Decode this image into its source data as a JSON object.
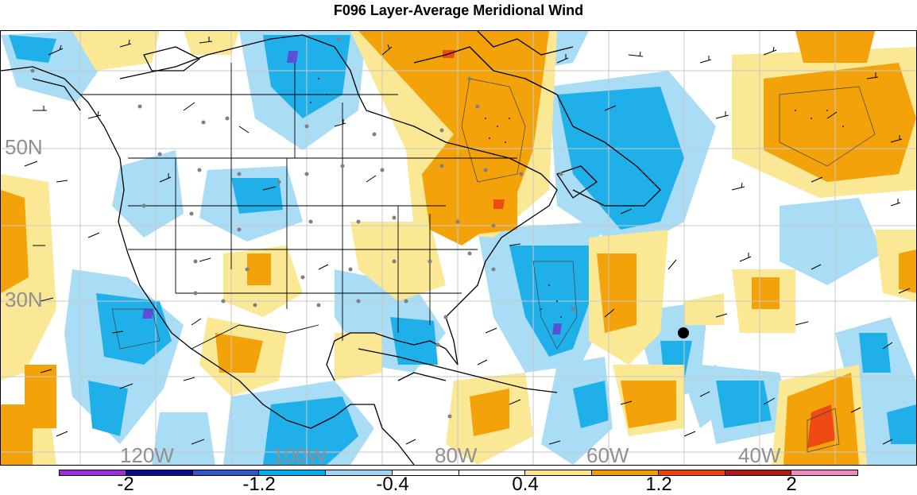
{
  "title": "F096 Layer-Average Meridional Wind",
  "lat_labels": [
    "50N",
    "30N"
  ],
  "lon_labels": [
    "120W",
    "100W",
    "80W",
    "60W",
    "40W"
  ],
  "colorbar": {
    "labels": [
      "-2",
      "-1.2",
      "-0.4",
      "0.4",
      "1.2",
      "2"
    ],
    "colors": [
      "#9b30d8",
      "#0a0a8c",
      "#3355cc",
      "#00b0ee",
      "#9fd6f5",
      "#ffffff",
      "#ffffff",
      "#fbe58e",
      "#f0a000",
      "#ee4010",
      "#b01818",
      "#f088c0"
    ]
  },
  "colors": {
    "light_blue": "#a9dcf5",
    "blue": "#1fb0ea",
    "purple_blue": "#5a50d8",
    "light_yellow": "#fbe895",
    "orange": "#f3a20a",
    "red_orange": "#ee4a14",
    "coast": "#000000",
    "grid": "#c8c8c8",
    "station": "#808080"
  },
  "marker": "large-black-dot"
}
